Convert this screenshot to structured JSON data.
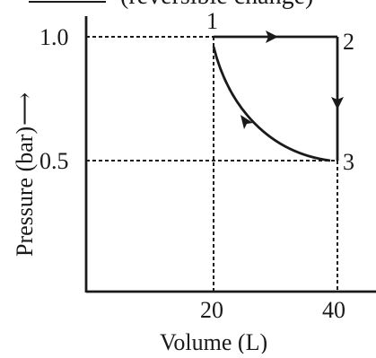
{
  "header": {
    "left_fragment": "",
    "right_fragment": "(reversible change)"
  },
  "axes": {
    "x_label": "Volume (L)",
    "y_label": "Pressure (bar)",
    "y_arrow": "⟶",
    "x_ticks": [
      "20",
      "40"
    ],
    "y_ticks": [
      "1.0",
      "0.5"
    ]
  },
  "points": [
    {
      "label": "1",
      "V": 20,
      "P": 1.0
    },
    {
      "label": "2",
      "V": 40,
      "P": 1.0
    },
    {
      "label": "3",
      "V": 40,
      "P": 0.5
    }
  ],
  "paths": [
    {
      "from": "1",
      "to": "2",
      "kind": "isobaric"
    },
    {
      "from": "2",
      "to": "3",
      "kind": "isochoric"
    },
    {
      "from": "3",
      "to": "1",
      "kind": "curve"
    }
  ],
  "colors": {
    "ink": "#1a1a1a",
    "background": "#ffffff"
  }
}
